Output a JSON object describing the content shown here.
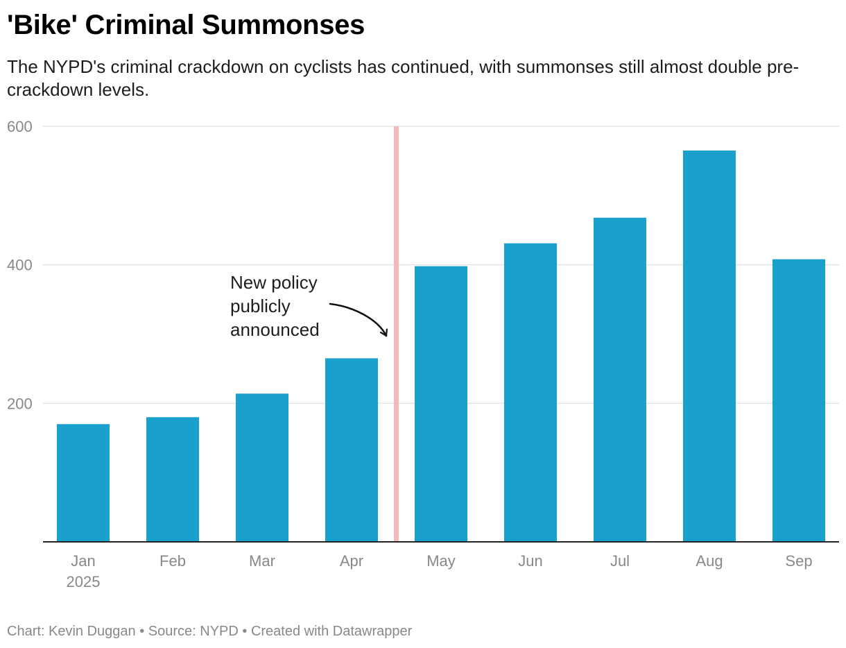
{
  "chart_data": {
    "type": "bar",
    "title": "'Bike' Criminal Summonses",
    "subtitle": "The NYPD's criminal crackdown on cyclists has continued, with summonses still almost double pre-crackdown levels.",
    "categories": [
      "Jan",
      "Feb",
      "Mar",
      "Apr",
      "May",
      "Jun",
      "Jul",
      "Aug",
      "Sep"
    ],
    "category_sublabels": [
      "2025",
      "",
      "",
      "",
      "",
      "",
      "",
      "",
      ""
    ],
    "values": [
      170,
      180,
      214,
      265,
      398,
      431,
      468,
      565,
      408
    ],
    "xlabel": "",
    "ylabel": "",
    "ylim": [
      0,
      600
    ],
    "yticks": [
      200,
      400,
      600
    ],
    "grid": true,
    "bar_color": "#1aa0cd",
    "marker": {
      "between": [
        "Apr",
        "May"
      ],
      "color": "#f2b6b6",
      "annotation_lines": [
        "New policy",
        "publicly",
        "announced"
      ]
    },
    "footer": "Chart: Kevin Duggan • Source: NYPD • Created with Datawrapper"
  }
}
